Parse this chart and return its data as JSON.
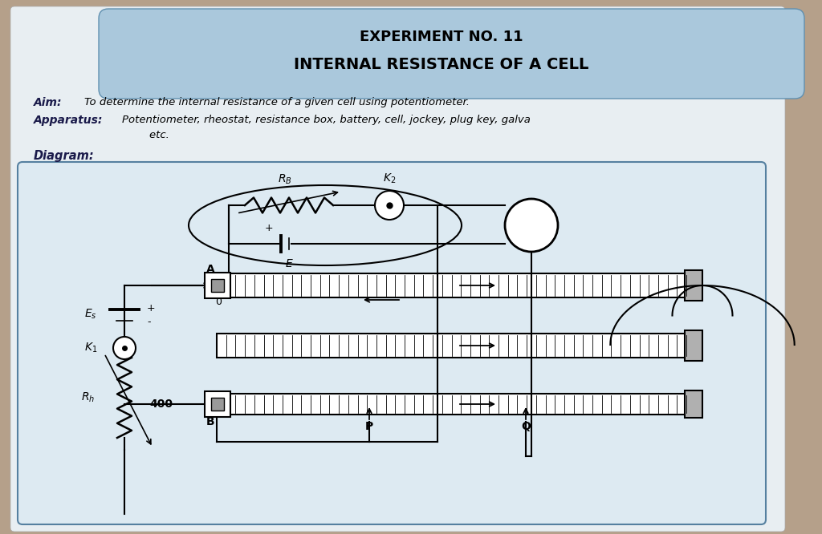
{
  "title_line1": "EXPERIMENT NO. 11",
  "title_line2": "INTERNAL RESISTANCE OF A CELL",
  "aim_label": "Aim:",
  "aim_text": "To determine the internal resistance of a given cell using potentiometer.",
  "app_label": "Apparatus:",
  "app_text": "Potentiometer, rheostat, resistance box, battery, cell, jockey, plug key, galva",
  "app_text2": "        etc.",
  "diag_label": "Diagram:",
  "table_bg": "#b5a08a",
  "page_bg": "#e8eef2",
  "header_bg": "#aac8dc",
  "diagram_bg": "#ddeaf2",
  "text_color": "#1a1a4a"
}
